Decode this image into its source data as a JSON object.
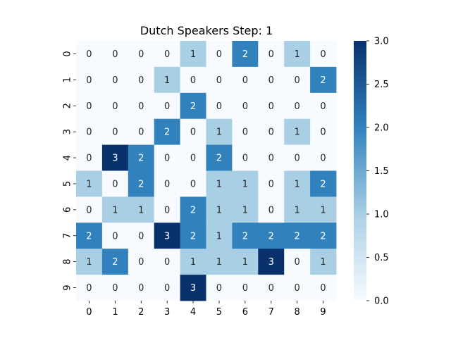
{
  "chart_data": {
    "type": "heatmap",
    "title": "Dutch Speakers Step: 1",
    "xlabel": "",
    "ylabel": "",
    "x_tick_labels": [
      "0",
      "1",
      "2",
      "3",
      "4",
      "5",
      "6",
      "7",
      "8",
      "9"
    ],
    "y_tick_labels": [
      "0",
      "1",
      "2",
      "3",
      "4",
      "5",
      "6",
      "7",
      "8",
      "9"
    ],
    "values": [
      [
        0,
        0,
        0,
        0,
        1,
        0,
        2,
        0,
        1,
        0
      ],
      [
        0,
        0,
        0,
        1,
        0,
        0,
        0,
        0,
        0,
        2
      ],
      [
        0,
        0,
        0,
        0,
        2,
        0,
        0,
        0,
        0,
        0
      ],
      [
        0,
        0,
        0,
        2,
        0,
        1,
        0,
        0,
        1,
        0
      ],
      [
        0,
        3,
        2,
        0,
        0,
        2,
        0,
        0,
        0,
        0
      ],
      [
        1,
        0,
        2,
        0,
        0,
        1,
        1,
        0,
        1,
        2
      ],
      [
        0,
        1,
        1,
        0,
        2,
        1,
        1,
        0,
        1,
        1
      ],
      [
        2,
        0,
        0,
        3,
        2,
        1,
        2,
        2,
        2,
        2
      ],
      [
        1,
        2,
        0,
        0,
        1,
        1,
        1,
        3,
        0,
        1
      ],
      [
        0,
        0,
        0,
        0,
        3,
        0,
        0,
        0,
        0,
        0
      ]
    ],
    "colorbar": {
      "min": 0.0,
      "max": 3.0,
      "tick_labels": [
        "0.0",
        "0.5",
        "1.0",
        "1.5",
        "2.0",
        "2.5",
        "3.0"
      ],
      "colormap": "Blues",
      "colors": [
        "#f7fbff",
        "#a9cfe5",
        "#3181bd",
        "#08306b"
      ]
    },
    "annotations": true,
    "grid": false,
    "legend": "colorbar-right"
  }
}
